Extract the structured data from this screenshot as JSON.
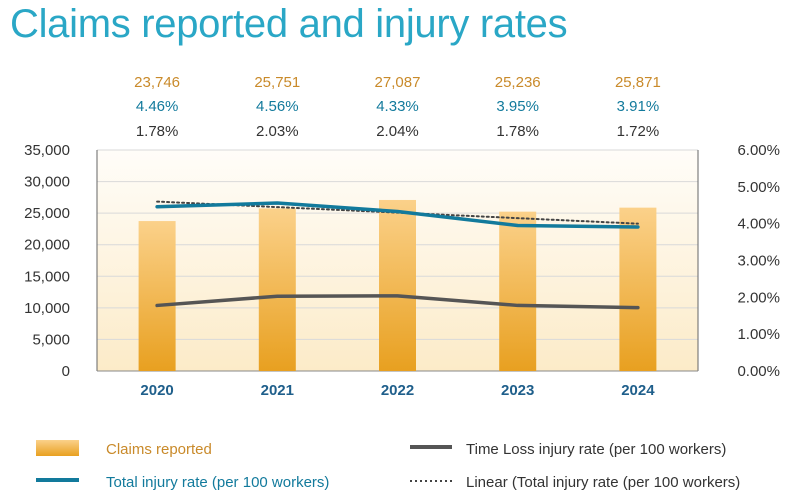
{
  "page": {
    "title": "Claims reported and injury rates"
  },
  "colors": {
    "claims": "#e8a020",
    "claims_light": "#fbd18a",
    "claims_text": "#c98a2a",
    "total_rate": "#127a9c",
    "time_loss": "#555555",
    "linear": "#444444",
    "plot_bg_top": "#fffdf9",
    "plot_bg_bottom": "#fcebc8",
    "grid": "#d9d9d9",
    "axis_text": "#333333",
    "category_text": "#1f5f8b"
  },
  "chart_data": {
    "type": "bar",
    "title": "Claims reported and injury rates",
    "categories": [
      "2020",
      "2021",
      "2022",
      "2023",
      "2024"
    ],
    "series": [
      {
        "name": "Claims reported",
        "type": "bar",
        "axis": "left",
        "values": [
          23746,
          25751,
          27087,
          25236,
          25871
        ],
        "labels": [
          "23,746",
          "25,751",
          "27,087",
          "25,236",
          "25,871"
        ]
      },
      {
        "name": "Total injury rate (per 100 workers)",
        "type": "line",
        "axis": "right",
        "values": [
          4.46,
          4.56,
          4.33,
          3.95,
          3.91
        ],
        "labels": [
          "4.46%",
          "4.56%",
          "4.33%",
          "3.95%",
          "3.91%"
        ]
      },
      {
        "name": "Time Loss injury rate (per 100 workers)",
        "type": "line",
        "axis": "right",
        "values": [
          1.78,
          2.03,
          2.04,
          1.78,
          1.72
        ],
        "labels": [
          "1.78%",
          "2.03%",
          "2.04%",
          "1.78%",
          "1.72%"
        ]
      },
      {
        "name": "Linear (Total injury rate (per 100 workers)",
        "type": "trendline",
        "style": "dotted",
        "axis": "right",
        "values": [
          4.6,
          4.45,
          4.3,
          4.15,
          4.0
        ]
      }
    ],
    "left_axis": {
      "ylim": [
        0,
        35000
      ],
      "ticks": [
        "0",
        "5,000",
        "10,000",
        "15,000",
        "20,000",
        "25,000",
        "30,000",
        "35,000"
      ]
    },
    "right_axis": {
      "ylim": [
        0,
        6
      ],
      "ticks": [
        "0.00%",
        "1.00%",
        "2.00%",
        "3.00%",
        "4.00%",
        "5.00%",
        "6.00%"
      ]
    },
    "grid": true,
    "legend": {
      "position": "bottom",
      "entries": [
        "Claims reported",
        "Time Loss injury rate (per 100 workers)",
        "Total injury rate (per 100 workers)",
        "Linear (Total injury rate (per 100 workers)"
      ]
    }
  }
}
